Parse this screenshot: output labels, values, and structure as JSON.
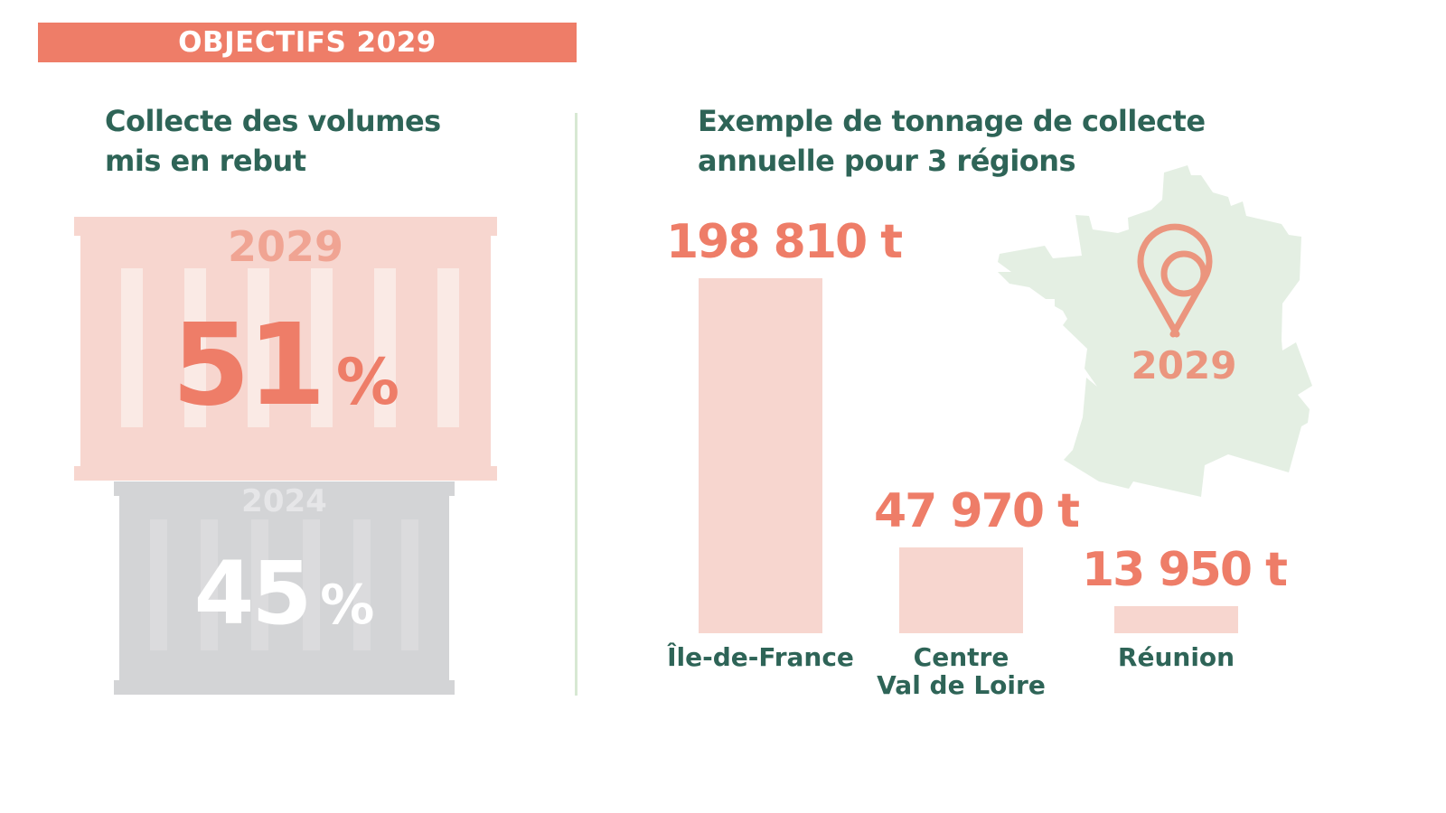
{
  "banner": "OBJECTIFS 2029",
  "left": {
    "title_line1": "Collecte des volumes",
    "title_line2": "mis en rebut",
    "container_2029": {
      "year": "2029",
      "value": "51",
      "unit": "%"
    },
    "container_2024": {
      "year": "2024",
      "value": "45",
      "unit": "%"
    }
  },
  "right": {
    "title_line1": "Exemple de tonnage de collecte",
    "title_line2": "annuelle pour 3 régions",
    "map_year": "2029"
  },
  "colors": {
    "accent": "#ee7d68",
    "dark_green": "#2e6457",
    "bar": "#f7d6cf",
    "map": "#e4efe3",
    "gray": "#d3d4d6"
  },
  "chart_data": {
    "type": "bar",
    "title": "Exemple de tonnage de collecte annuelle pour 3 régions",
    "categories": [
      "Île-de-France",
      "Centre Val de Loire",
      "Réunion"
    ],
    "category_lines": [
      [
        "Île-de-France"
      ],
      [
        "Centre",
        "Val de Loire"
      ],
      [
        "Réunion"
      ]
    ],
    "values": [
      198810,
      47970,
      13950
    ],
    "value_labels": [
      "198 810 t",
      "47 970 t",
      "13 950 t"
    ],
    "unit": "t",
    "xlabel": "",
    "ylabel": "",
    "ylim": [
      0,
      198810
    ],
    "grid": false
  }
}
